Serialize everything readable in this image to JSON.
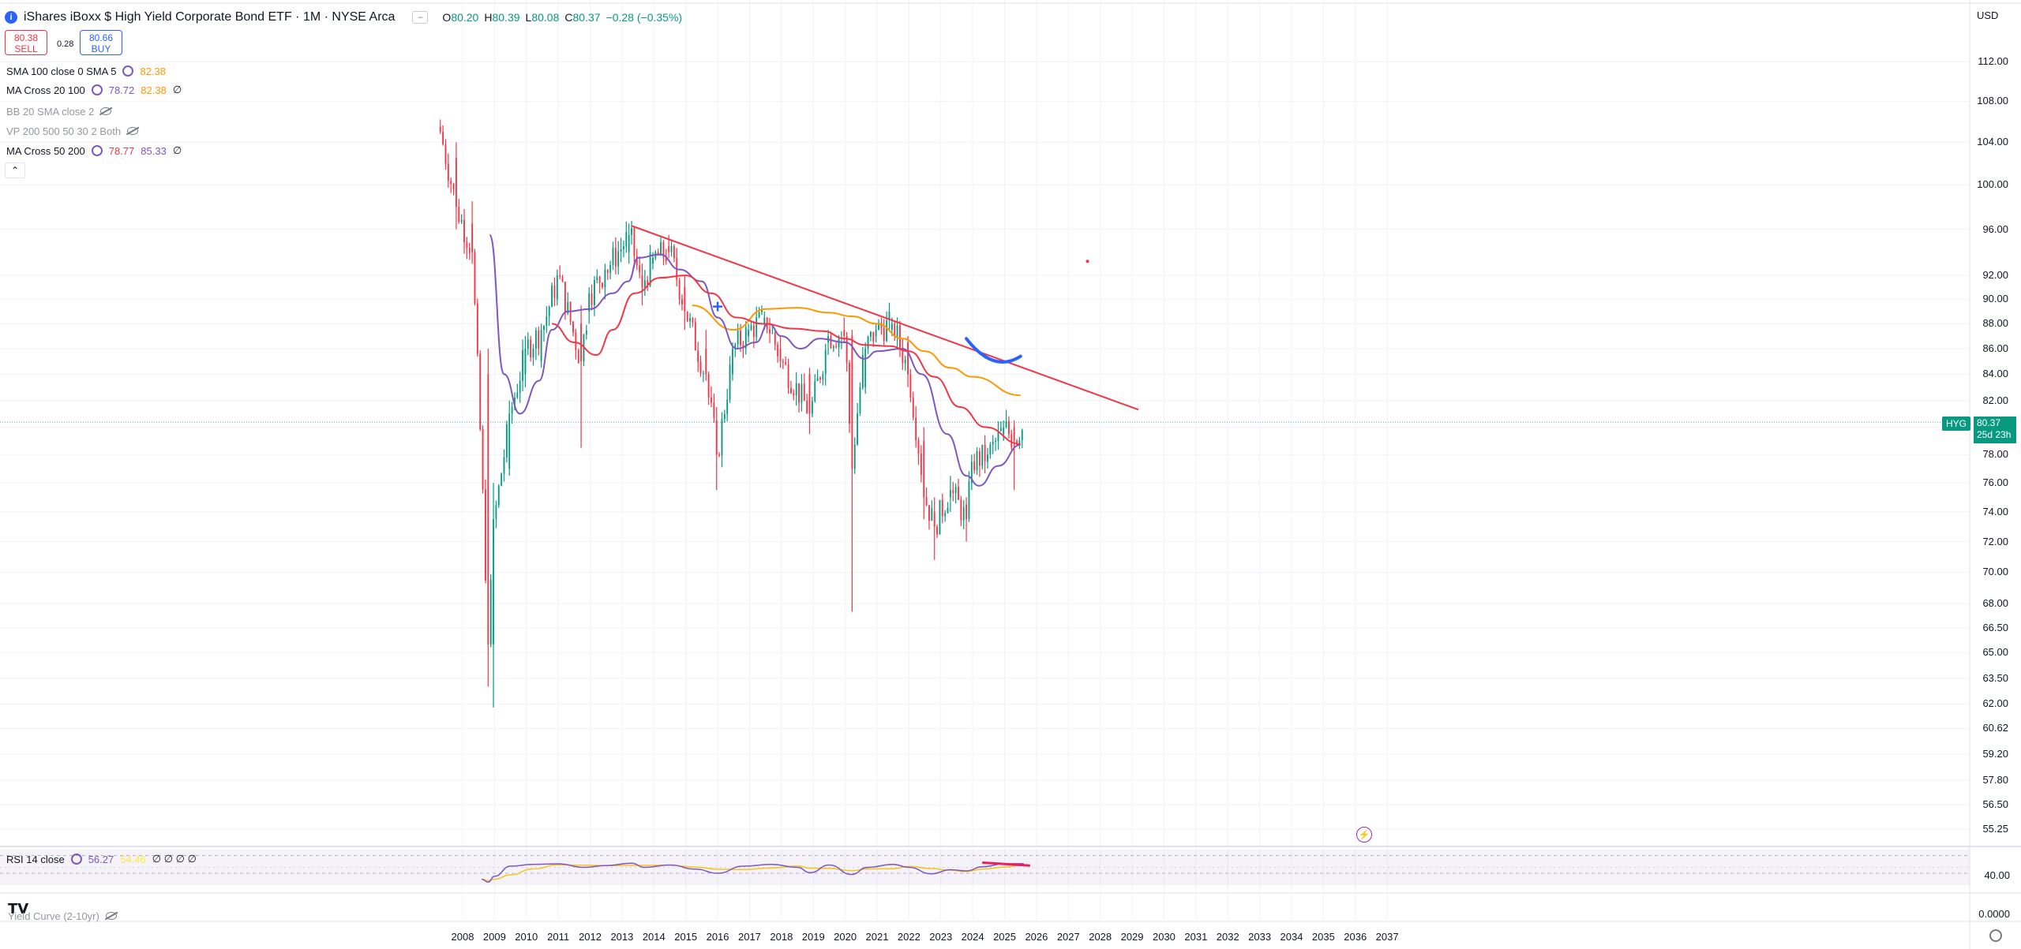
{
  "header": {
    "title": "iShares iBoxx $ High Yield Corporate Bond ETF · 1M · NYSE Arca",
    "logo_letter": "i",
    "ohlc": [
      {
        "k": "O",
        "v": "80.20"
      },
      {
        "k": "H",
        "v": "80.39"
      },
      {
        "k": "L",
        "v": "80.08"
      },
      {
        "k": "C",
        "v": "80.37"
      },
      {
        "k": "",
        "v": "−0.28 (−0.35%)"
      }
    ],
    "sell_price": "80.38",
    "sell_label": "SELL",
    "spread": "0.28",
    "buy_price": "80.66",
    "buy_label": "BUY"
  },
  "currency": "USD",
  "indicators": [
    {
      "label": "SMA 100 close 0 SMA 5",
      "v1": "82.38",
      "v1_color": "#ff9800",
      "v2": "",
      "v2_color": "",
      "extra": "",
      "dim": false
    },
    {
      "label": "MA Cross 20 100",
      "v1": "78.72",
      "v1_color": "#7e57c2",
      "v2": "82.38",
      "v2_color": "#ff9800",
      "extra": "∅",
      "dim": false
    },
    {
      "label": "BB 20 SMA close 2",
      "v1": "",
      "v1_color": "",
      "v2": "",
      "v2_color": "",
      "extra": "",
      "dim": true
    },
    {
      "label": "VP 200 500 50 30 2 Both",
      "v1": "",
      "v1_color": "",
      "v2": "",
      "v2_color": "",
      "extra": "",
      "dim": true
    },
    {
      "label": "MA Cross 50 200",
      "v1": "78.77",
      "v1_color": "#f23645",
      "v2": "85.33",
      "v2_color": "#7e57c2",
      "extra": "∅",
      "dim": false
    }
  ],
  "price_tag": {
    "symbol": "HYG",
    "price": "80.37",
    "countdown": "25d 23h"
  },
  "rsi": {
    "label": "RSI 14 close",
    "value": "56.27",
    "value_color": "#7e57c2",
    "ma": "54.46",
    "ma_color": "#ffeb3b",
    "extra": "∅ ∅ ∅ ∅",
    "level_label": "40.00"
  },
  "yield_curve_label": "Yield Curve (2-10yr)",
  "pane_zero": "0.0000",
  "colors": {
    "up": "#089981",
    "down": "#f23645",
    "sma100": "#ff9800",
    "ma20": "#7e57c2",
    "ma50": "#f23645",
    "trend": "#f23645",
    "drawing": "#2962ff",
    "rsi_div": "#e91e63"
  },
  "chart_data": {
    "type": "candlestick",
    "title": "iShares iBoxx $ High Yield Corporate Bond ETF · 1M · NYSE Arca",
    "timeframe": "1M",
    "y_scale": "log",
    "ylim": [
      54.5,
      116
    ],
    "y_ticks": [
      "112.00",
      "108.00",
      "104.00",
      "100.00",
      "96.00",
      "92.00",
      "90.00",
      "88.00",
      "86.00",
      "84.00",
      "82.00",
      "80.00",
      "78.00",
      "76.00",
      "74.00",
      "72.00",
      "70.00",
      "68.00",
      "66.50",
      "65.00",
      "63.50",
      "62.00",
      "60.62",
      "59.20",
      "57.80",
      "56.50",
      "55.25"
    ],
    "x_ticks": [
      "2008",
      "2009",
      "2010",
      "2011",
      "2012",
      "2013",
      "2014",
      "2015",
      "2016",
      "2017",
      "2018",
      "2019",
      "2020",
      "2021",
      "2022",
      "2023",
      "2024",
      "2025",
      "2026",
      "2027",
      "2028",
      "2029",
      "2030",
      "2031",
      "2032",
      "2033",
      "2034",
      "2035",
      "2036",
      "2037"
    ],
    "x_range": [
      2006.92,
      2037.3
    ],
    "last_close": 80.37,
    "ohlc_keypoints": [
      {
        "t": 2007.3,
        "o": 105.5,
        "h": 106.2,
        "l": 104.8,
        "c": 105.0
      },
      {
        "t": 2007.8,
        "o": 102.5,
        "h": 104.0,
        "l": 96.0,
        "c": 98.0
      },
      {
        "t": 2008.3,
        "o": 96.5,
        "h": 98.5,
        "l": 93.0,
        "c": 94.0
      },
      {
        "t": 2008.8,
        "o": 84.0,
        "h": 86.0,
        "l": 63.0,
        "c": 65.5
      },
      {
        "t": 2009.0,
        "o": 65.5,
        "h": 76.0,
        "l": 61.8,
        "c": 73.5
      },
      {
        "t": 2009.5,
        "o": 77.0,
        "h": 82.0,
        "l": 76.5,
        "c": 81.0
      },
      {
        "t": 2010.0,
        "o": 84.0,
        "h": 87.0,
        "l": 83.0,
        "c": 86.0
      },
      {
        "t": 2010.5,
        "o": 85.0,
        "h": 88.0,
        "l": 84.5,
        "c": 87.5
      },
      {
        "t": 2011.0,
        "o": 90.0,
        "h": 92.5,
        "l": 89.5,
        "c": 92.0
      },
      {
        "t": 2011.7,
        "o": 88.0,
        "h": 89.5,
        "l": 78.5,
        "c": 85.0
      },
      {
        "t": 2012.0,
        "o": 89.0,
        "h": 91.0,
        "l": 88.0,
        "c": 90.5
      },
      {
        "t": 2012.5,
        "o": 91.0,
        "h": 93.0,
        "l": 90.0,
        "c": 92.5
      },
      {
        "t": 2013.25,
        "o": 94.0,
        "h": 96.5,
        "l": 93.0,
        "c": 95.5
      },
      {
        "t": 2013.6,
        "o": 92.0,
        "h": 93.0,
        "l": 89.5,
        "c": 91.0
      },
      {
        "t": 2014.0,
        "o": 93.0,
        "h": 94.0,
        "l": 92.5,
        "c": 93.5
      },
      {
        "t": 2014.5,
        "o": 94.5,
        "h": 95.5,
        "l": 93.5,
        "c": 94.0
      },
      {
        "t": 2015.0,
        "o": 91.0,
        "h": 92.0,
        "l": 87.5,
        "c": 89.0
      },
      {
        "t": 2015.6,
        "o": 86.0,
        "h": 87.5,
        "l": 83.5,
        "c": 84.0
      },
      {
        "t": 2016.0,
        "o": 80.5,
        "h": 81.5,
        "l": 75.5,
        "c": 78.0
      },
      {
        "t": 2016.5,
        "o": 84.0,
        "h": 86.5,
        "l": 83.5,
        "c": 86.0
      },
      {
        "t": 2017.0,
        "o": 87.0,
        "h": 88.0,
        "l": 86.5,
        "c": 87.5
      },
      {
        "t": 2017.5,
        "o": 88.0,
        "h": 89.0,
        "l": 87.5,
        "c": 88.5
      },
      {
        "t": 2018.0,
        "o": 86.0,
        "h": 87.0,
        "l": 84.5,
        "c": 85.0
      },
      {
        "t": 2018.9,
        "o": 84.0,
        "h": 84.5,
        "l": 79.5,
        "c": 81.0
      },
      {
        "t": 2019.5,
        "o": 86.5,
        "h": 87.5,
        "l": 85.5,
        "c": 87.0
      },
      {
        "t": 2020.0,
        "o": 87.5,
        "h": 88.5,
        "l": 86.5,
        "c": 87.0
      },
      {
        "t": 2020.2,
        "o": 87.0,
        "h": 87.5,
        "l": 67.5,
        "c": 77.0
      },
      {
        "t": 2020.6,
        "o": 83.0,
        "h": 86.5,
        "l": 82.5,
        "c": 86.0
      },
      {
        "t": 2021.0,
        "o": 87.0,
        "h": 88.0,
        "l": 86.5,
        "c": 87.5
      },
      {
        "t": 2021.5,
        "o": 87.5,
        "h": 88.5,
        "l": 87.0,
        "c": 88.0
      },
      {
        "t": 2022.0,
        "o": 86.5,
        "h": 87.0,
        "l": 83.0,
        "c": 84.0
      },
      {
        "t": 2022.5,
        "o": 79.0,
        "h": 80.0,
        "l": 73.5,
        "c": 75.0
      },
      {
        "t": 2022.8,
        "o": 74.0,
        "h": 75.0,
        "l": 70.8,
        "c": 73.0
      },
      {
        "t": 2023.3,
        "o": 75.0,
        "h": 76.5,
        "l": 74.0,
        "c": 75.5
      },
      {
        "t": 2023.8,
        "o": 74.5,
        "h": 75.0,
        "l": 72.0,
        "c": 73.5
      },
      {
        "t": 2024.0,
        "o": 76.0,
        "h": 78.0,
        "l": 75.5,
        "c": 77.5
      },
      {
        "t": 2024.5,
        "o": 77.5,
        "h": 78.5,
        "l": 77.0,
        "c": 78.0
      },
      {
        "t": 2025.0,
        "o": 79.5,
        "h": 80.5,
        "l": 79.0,
        "c": 80.0
      },
      {
        "t": 2025.3,
        "o": 80.0,
        "h": 80.5,
        "l": 75.5,
        "c": 79.0
      },
      {
        "t": 2025.6,
        "o": 80.2,
        "h": 80.39,
        "l": 80.08,
        "c": 80.37
      }
    ],
    "series": [
      {
        "name": "SMA 100",
        "color": "#ff9800",
        "points": [
          [
            2015.2,
            89.5
          ],
          [
            2016.5,
            87.5
          ],
          [
            2017.5,
            89.2
          ],
          [
            2018.5,
            89.3
          ],
          [
            2019.5,
            88.9
          ],
          [
            2020.2,
            88.6
          ],
          [
            2021.0,
            88.0
          ],
          [
            2021.8,
            86.8
          ],
          [
            2022.5,
            85.8
          ],
          [
            2023.3,
            84.5
          ],
          [
            2024.0,
            83.8
          ],
          [
            2025.5,
            82.38
          ]
        ]
      },
      {
        "name": "MA 20",
        "color": "#7e57c2",
        "points": [
          [
            2008.85,
            95.5
          ],
          [
            2009.3,
            84.0
          ],
          [
            2009.8,
            81.0
          ],
          [
            2010.4,
            83.5
          ],
          [
            2010.8,
            87.5
          ],
          [
            2011.3,
            89.0
          ],
          [
            2012.0,
            89.2
          ],
          [
            2012.7,
            90.5
          ],
          [
            2013.2,
            91.5
          ],
          [
            2013.5,
            93.5
          ],
          [
            2014.2,
            93.8
          ],
          [
            2014.8,
            92.5
          ],
          [
            2015.5,
            91.5
          ],
          [
            2016.0,
            88.5
          ],
          [
            2016.6,
            86.0
          ],
          [
            2017.2,
            86.5
          ],
          [
            2017.6,
            88.0
          ],
          [
            2018.0,
            87.0
          ],
          [
            2018.6,
            86.0
          ],
          [
            2019.2,
            86.8
          ],
          [
            2020.0,
            86.5
          ],
          [
            2020.6,
            85.2
          ],
          [
            2021.0,
            85.8
          ],
          [
            2021.8,
            86.0
          ],
          [
            2022.4,
            84.0
          ],
          [
            2023.2,
            79.5
          ],
          [
            2023.8,
            76.5
          ],
          [
            2024.2,
            75.8
          ],
          [
            2024.8,
            77.2
          ],
          [
            2025.5,
            78.72
          ]
        ]
      },
      {
        "name": "MA 50",
        "color": "#f23645",
        "points": [
          [
            2010.8,
            88.0
          ],
          [
            2011.5,
            86.5
          ],
          [
            2012.2,
            85.5
          ],
          [
            2012.7,
            87.5
          ],
          [
            2013.4,
            90.5
          ],
          [
            2014.2,
            91.8
          ],
          [
            2015.0,
            92.0
          ],
          [
            2015.8,
            90.5
          ],
          [
            2016.6,
            88.5
          ],
          [
            2017.4,
            88.0
          ],
          [
            2018.4,
            87.6
          ],
          [
            2019.3,
            87.4
          ],
          [
            2020.0,
            86.8
          ],
          [
            2020.6,
            86.3
          ],
          [
            2021.4,
            86.2
          ],
          [
            2022.0,
            85.8
          ],
          [
            2022.8,
            83.8
          ],
          [
            2023.6,
            81.5
          ],
          [
            2024.4,
            80.0
          ],
          [
            2025.5,
            78.77
          ]
        ]
      }
    ],
    "trendline": {
      "color": "#f23645",
      "from": [
        2013.3,
        96.3
      ],
      "to": [
        2029.2,
        81.3
      ]
    },
    "annotations": [
      {
        "type": "arc",
        "color": "#2962ff",
        "from": [
          2023.8,
          86.8
        ],
        "to": [
          2025.5,
          85.4
        ]
      },
      {
        "type": "marker",
        "color": "#2962ff",
        "at": [
          2016.0,
          89.4
        ]
      },
      {
        "type": "dot",
        "color": "#f23645",
        "at": [
          2027.6,
          93.2
        ]
      }
    ],
    "rsi_series": {
      "name": "RSI 14",
      "color": "#7e57c2",
      "ma_color": "#ffeb3b",
      "level": 40,
      "points": [
        [
          2008.6,
          30
        ],
        [
          2008.8,
          25
        ],
        [
          2009.0,
          35
        ],
        [
          2009.5,
          52
        ],
        [
          2010.2,
          55
        ],
        [
          2011.0,
          56
        ],
        [
          2011.8,
          50
        ],
        [
          2012.5,
          53
        ],
        [
          2013.3,
          57
        ],
        [
          2013.7,
          50
        ],
        [
          2014.5,
          54
        ],
        [
          2015.3,
          47
        ],
        [
          2016.0,
          40
        ],
        [
          2016.8,
          52
        ],
        [
          2017.7,
          55
        ],
        [
          2018.5,
          50
        ],
        [
          2018.9,
          41
        ],
        [
          2019.5,
          54
        ],
        [
          2020.2,
          38
        ],
        [
          2020.7,
          50
        ],
        [
          2021.5,
          55
        ],
        [
          2022.0,
          50
        ],
        [
          2022.7,
          39
        ],
        [
          2023.3,
          46
        ],
        [
          2023.8,
          44
        ],
        [
          2024.3,
          51
        ],
        [
          2025.0,
          56
        ],
        [
          2025.6,
          56.27
        ]
      ]
    },
    "rsi_divergence": {
      "color": "#e91e63",
      "from": [
        2024.3,
        58
      ],
      "to": [
        2025.8,
        53
      ]
    }
  }
}
